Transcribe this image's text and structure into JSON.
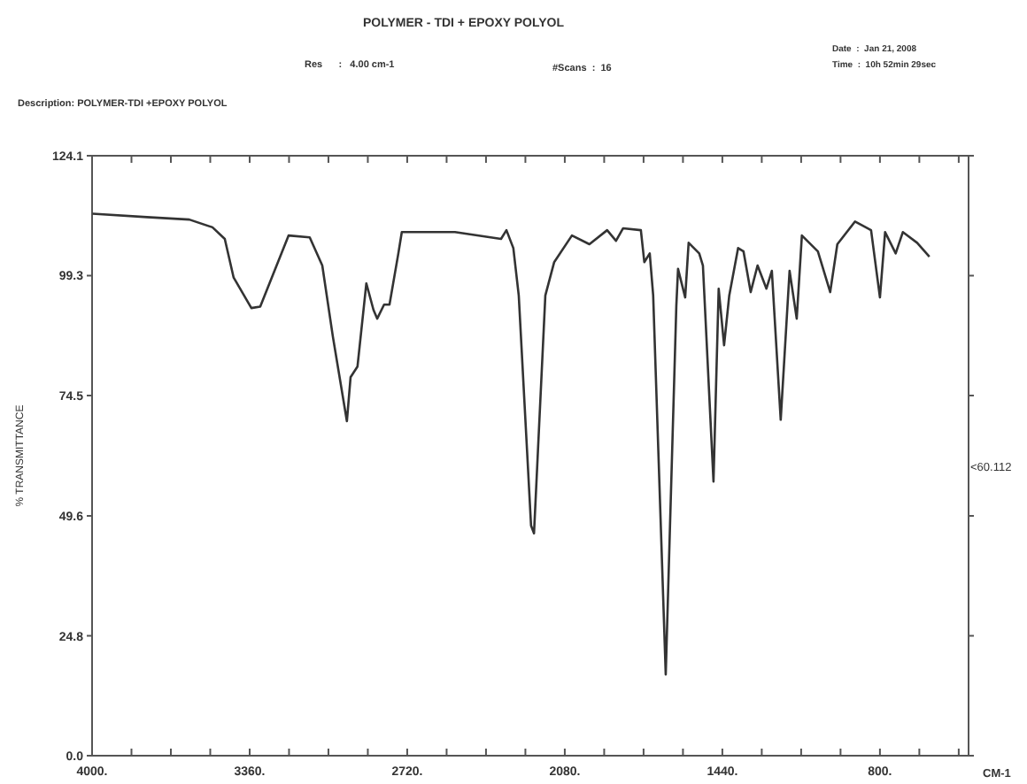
{
  "chart_data": {
    "type": "line",
    "title": "POLYMER - TDI + EPOXY POLYOL",
    "xlabel": "CM-1",
    "ylabel": "% TRANSMITTANCE",
    "annotations": [
      "Res      :   4.00 cm-1",
      "#Scans  :  16",
      "Date  :  Jan 21, 2008",
      "Time  :  10h 52min 29sec",
      "Description: POLYMER-TDI +EPOXY POLYOL",
      "<60.112"
    ],
    "xlim": [
      4000,
      440
    ],
    "ylim": [
      0,
      124.1
    ],
    "xticks": [
      {
        "value": 4000,
        "label": "4000."
      },
      {
        "value": 3840,
        "label": null
      },
      {
        "value": 3680,
        "label": null
      },
      {
        "value": 3520,
        "label": null
      },
      {
        "value": 3360,
        "label": "3360."
      },
      {
        "value": 3200,
        "label": null
      },
      {
        "value": 3040,
        "label": null
      },
      {
        "value": 2880,
        "label": null
      },
      {
        "value": 2720,
        "label": "2720."
      },
      {
        "value": 2560,
        "label": null
      },
      {
        "value": 2400,
        "label": null
      },
      {
        "value": 2240,
        "label": null
      },
      {
        "value": 2080,
        "label": "2080."
      },
      {
        "value": 1920,
        "label": null
      },
      {
        "value": 1760,
        "label": null
      },
      {
        "value": 1600,
        "label": null
      },
      {
        "value": 1440,
        "label": "1440."
      },
      {
        "value": 1280,
        "label": null
      },
      {
        "value": 1120,
        "label": null
      },
      {
        "value": 960,
        "label": null
      },
      {
        "value": 800,
        "label": "800."
      },
      {
        "value": 640,
        "label": null
      },
      {
        "value": 480,
        "label": null
      }
    ],
    "yticks": [
      {
        "value": 0,
        "label": "0.0"
      },
      24.8,
      49.6,
      74.5,
      99.3,
      124.1
    ],
    "series": [
      {
        "color": "#333333",
        "x": [
          3998,
          3777,
          3605,
          3511,
          3461,
          3425,
          3353,
          3317,
          3259,
          3202,
          3116,
          3065,
          3022,
          2965,
          2950,
          2922,
          2886,
          2857,
          2842,
          2814,
          2792,
          2756,
          2742,
          2526,
          2339,
          2317,
          2289,
          2267,
          2217,
          2205,
          2159,
          2123,
          2051,
          1980,
          1908,
          1872,
          1843,
          1771,
          1757,
          1735,
          1721,
          1670,
          1627,
          1620,
          1591,
          1577,
          1534,
          1519,
          1476,
          1455,
          1433,
          1412,
          1376,
          1354,
          1325,
          1297,
          1261,
          1239,
          1203,
          1167,
          1138,
          1117,
          1052,
          1002,
          973,
          901,
          836,
          800,
          779,
          736,
          707,
          649,
          599
        ],
        "values": [
          112.1,
          111.4,
          110.9,
          109.3,
          106.9,
          98.9,
          92.6,
          92.9,
          100.3,
          107.6,
          107.2,
          101.4,
          86.7,
          69.2,
          78.3,
          80.5,
          97.7,
          92.2,
          90.4,
          93.3,
          93.3,
          103.9,
          108.3,
          108.3,
          106.9,
          108.7,
          105,
          95.2,
          47.6,
          46,
          95.2,
          102.1,
          107.6,
          105.8,
          108.7,
          106.5,
          109.1,
          108.7,
          102.1,
          103.9,
          95.2,
          16.8,
          93,
          100.7,
          94.8,
          106.1,
          103.9,
          101.4,
          56.7,
          96.6,
          84.9,
          95.2,
          105,
          104.3,
          95.9,
          101.4,
          96.6,
          100.3,
          69.5,
          100.3,
          90.4,
          107.6,
          104.3,
          95.9,
          105.8,
          110.5,
          108.7,
          94.8,
          108.3,
          103.9,
          108.3,
          106.1,
          103.2
        ]
      }
    ]
  }
}
